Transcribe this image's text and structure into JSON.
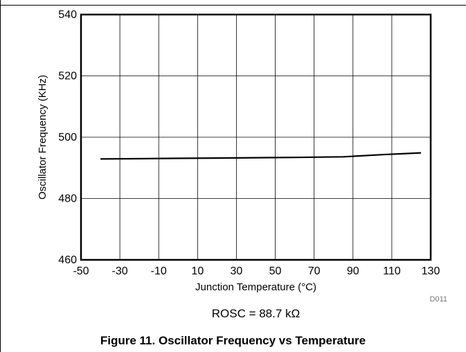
{
  "figure": {
    "caption": "Figure 11. Oscillator Frequency vs Temperature",
    "note": "ROSC = 88.7 kΩ",
    "code": "D011"
  },
  "chart_data": {
    "type": "line",
    "xlabel": "Junction Temperature (°C)",
    "ylabel": "Oscillator Frequency (KHz)",
    "xlim": [
      -50,
      130
    ],
    "ylim": [
      460,
      540
    ],
    "xticks": [
      -50,
      -30,
      -10,
      10,
      30,
      50,
      70,
      90,
      110,
      130
    ],
    "yticks": [
      460,
      480,
      500,
      520,
      540
    ],
    "xtick_labels": [
      "-50",
      "-30",
      "-10",
      "10",
      "30",
      "50",
      "70",
      "90",
      "110",
      "130"
    ],
    "ytick_labels": [
      "460",
      "480",
      "500",
      "520",
      "540"
    ],
    "grid": true,
    "series": [
      {
        "x": [
          -40,
          -20,
          0,
          20,
          40,
          60,
          85,
          105,
          125
        ],
        "y": [
          492.9,
          493.0,
          493.1,
          493.2,
          493.3,
          493.4,
          493.6,
          494.3,
          494.9
        ]
      }
    ],
    "colors": {
      "line": "#000000",
      "grid": "#000000",
      "frame": "#000000"
    }
  }
}
